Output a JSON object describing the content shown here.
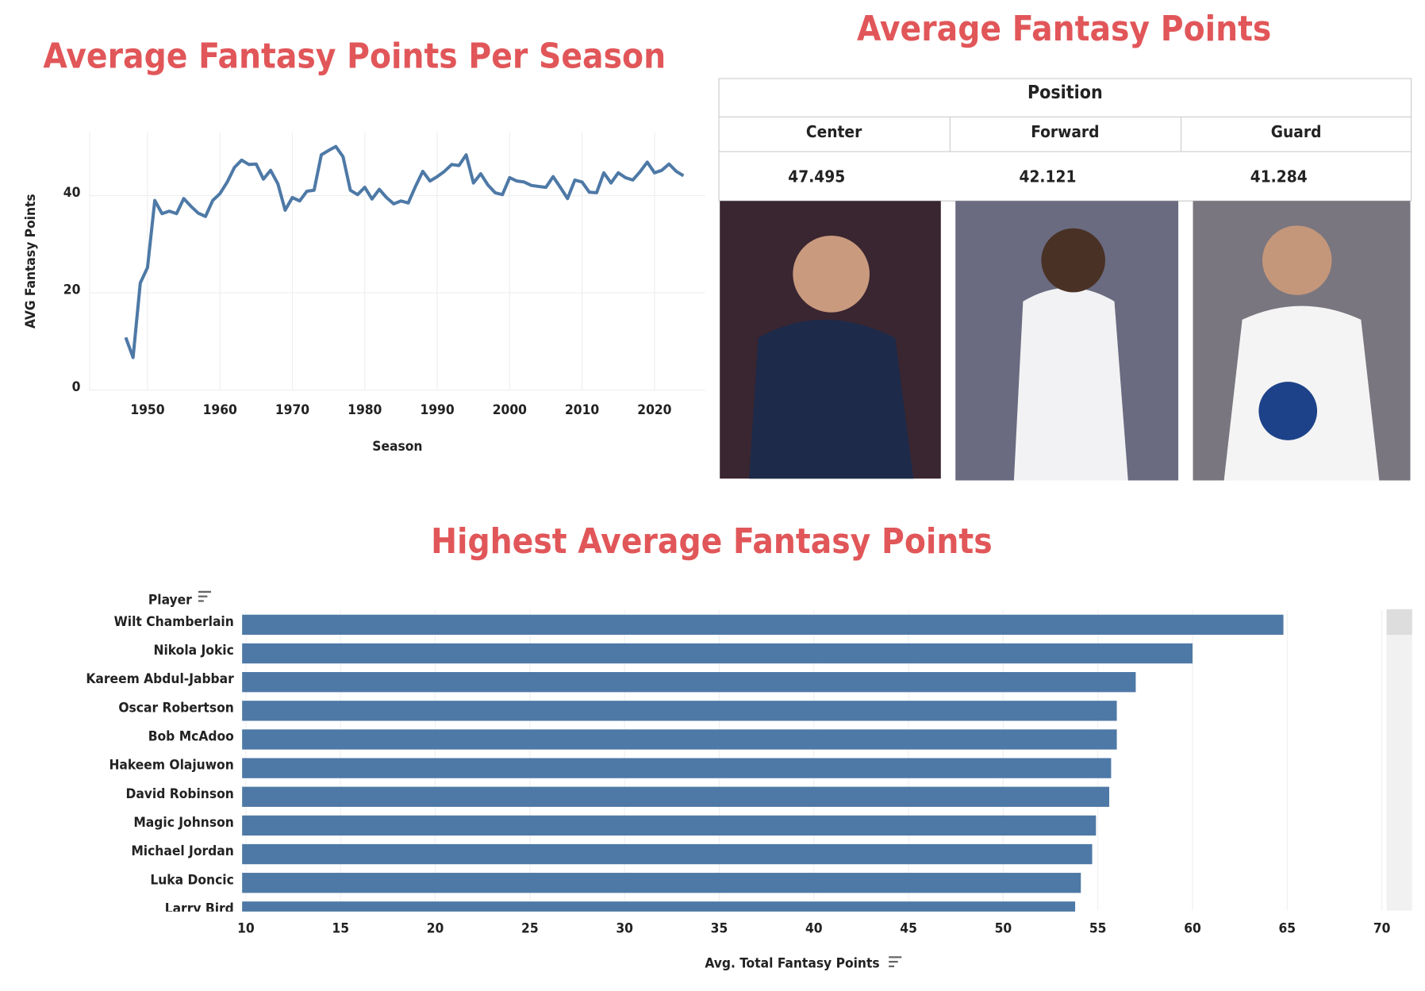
{
  "chart_data": [
    {
      "type": "line",
      "title": "Average Fantasy Points Per Season",
      "x_label": "Season",
      "y_label": "AVG Fantasy Points",
      "color": "#4e79a7",
      "grid": true,
      "x": [
        1947,
        1948,
        1949,
        1950,
        1951,
        1952,
        1953,
        1954,
        1955,
        1956,
        1957,
        1958,
        1959,
        1960,
        1961,
        1962,
        1963,
        1964,
        1965,
        1966,
        1967,
        1968,
        1969,
        1970,
        1971,
        1972,
        1973,
        1974,
        1975,
        1976,
        1977,
        1978,
        1979,
        1980,
        1981,
        1982,
        1983,
        1984,
        1985,
        1986,
        1987,
        1988,
        1989,
        1990,
        1991,
        1992,
        1993,
        1994,
        1995,
        1996,
        1997,
        1998,
        1999,
        2000,
        2001,
        2002,
        2003,
        2004,
        2005,
        2006,
        2007,
        2008,
        2009,
        2010,
        2011,
        2012,
        2013,
        2014,
        2015,
        2016,
        2017,
        2018,
        2019,
        2020,
        2021,
        2022,
        2023,
        2024
      ],
      "values": [
        10.8,
        6.7,
        22,
        25.2,
        39,
        36.3,
        36.8,
        36.3,
        39.4,
        37.8,
        36.4,
        35.7,
        39,
        40.4,
        42.8,
        45.8,
        47.3,
        46.4,
        46.5,
        43.4,
        45.2,
        42.4,
        37,
        39.6,
        38.9,
        40.9,
        41.1,
        48.4,
        49.3,
        50.1,
        48,
        41.1,
        40.2,
        41.7,
        39.3,
        41.3,
        39.6,
        38.3,
        38.9,
        38.5,
        41.9,
        45,
        43,
        43.9,
        45,
        46.4,
        46.2,
        48.4,
        42.6,
        44.5,
        42.2,
        40.6,
        40.2,
        43.7,
        43,
        42.8,
        42.1,
        41.9,
        41.7,
        43.9,
        41.7,
        39.4,
        43.2,
        42.8,
        40.7,
        40.6,
        44.7,
        42.6,
        44.7,
        43.7,
        43.2,
        44.9,
        46.9,
        44.7,
        45.2,
        46.5,
        45,
        44.1
      ],
      "xlim": [
        1942,
        2027
      ],
      "ylim": [
        0,
        53
      ],
      "xticks": [
        1950,
        1960,
        1970,
        1980,
        1990,
        2000,
        2010,
        2020
      ],
      "yticks": [
        0,
        20,
        40
      ]
    },
    {
      "type": "table",
      "title": "Average Fantasy Points",
      "header": "Position",
      "categories": [
        "Center",
        "Forward",
        "Guard"
      ],
      "values": [
        47.495,
        42.121,
        41.284
      ]
    },
    {
      "type": "bar",
      "title": "Highest Average Fantasy Points",
      "y_label": "Player",
      "x_label": "Avg. Total Fantasy Points",
      "color": "#4e79a7",
      "grid": true,
      "categories": [
        "Wilt Chamberlain",
        "Nikola Jokic",
        "Kareem Abdul-Jabbar",
        "Oscar Robertson",
        "Bob McAdoo",
        "Hakeem Olajuwon",
        "David Robinson",
        "Magic Johnson",
        "Michael Jordan",
        "Luka Doncic",
        "Larry Bird"
      ],
      "values": [
        64.8,
        60.0,
        57.0,
        56.0,
        56.0,
        55.7,
        55.6,
        54.9,
        54.7,
        54.1,
        53.8
      ],
      "xlim": [
        9.8,
        70.2
      ],
      "xticks": [
        10,
        15,
        20,
        25,
        30,
        35,
        40,
        45,
        50,
        55,
        60,
        65,
        70
      ]
    }
  ]
}
